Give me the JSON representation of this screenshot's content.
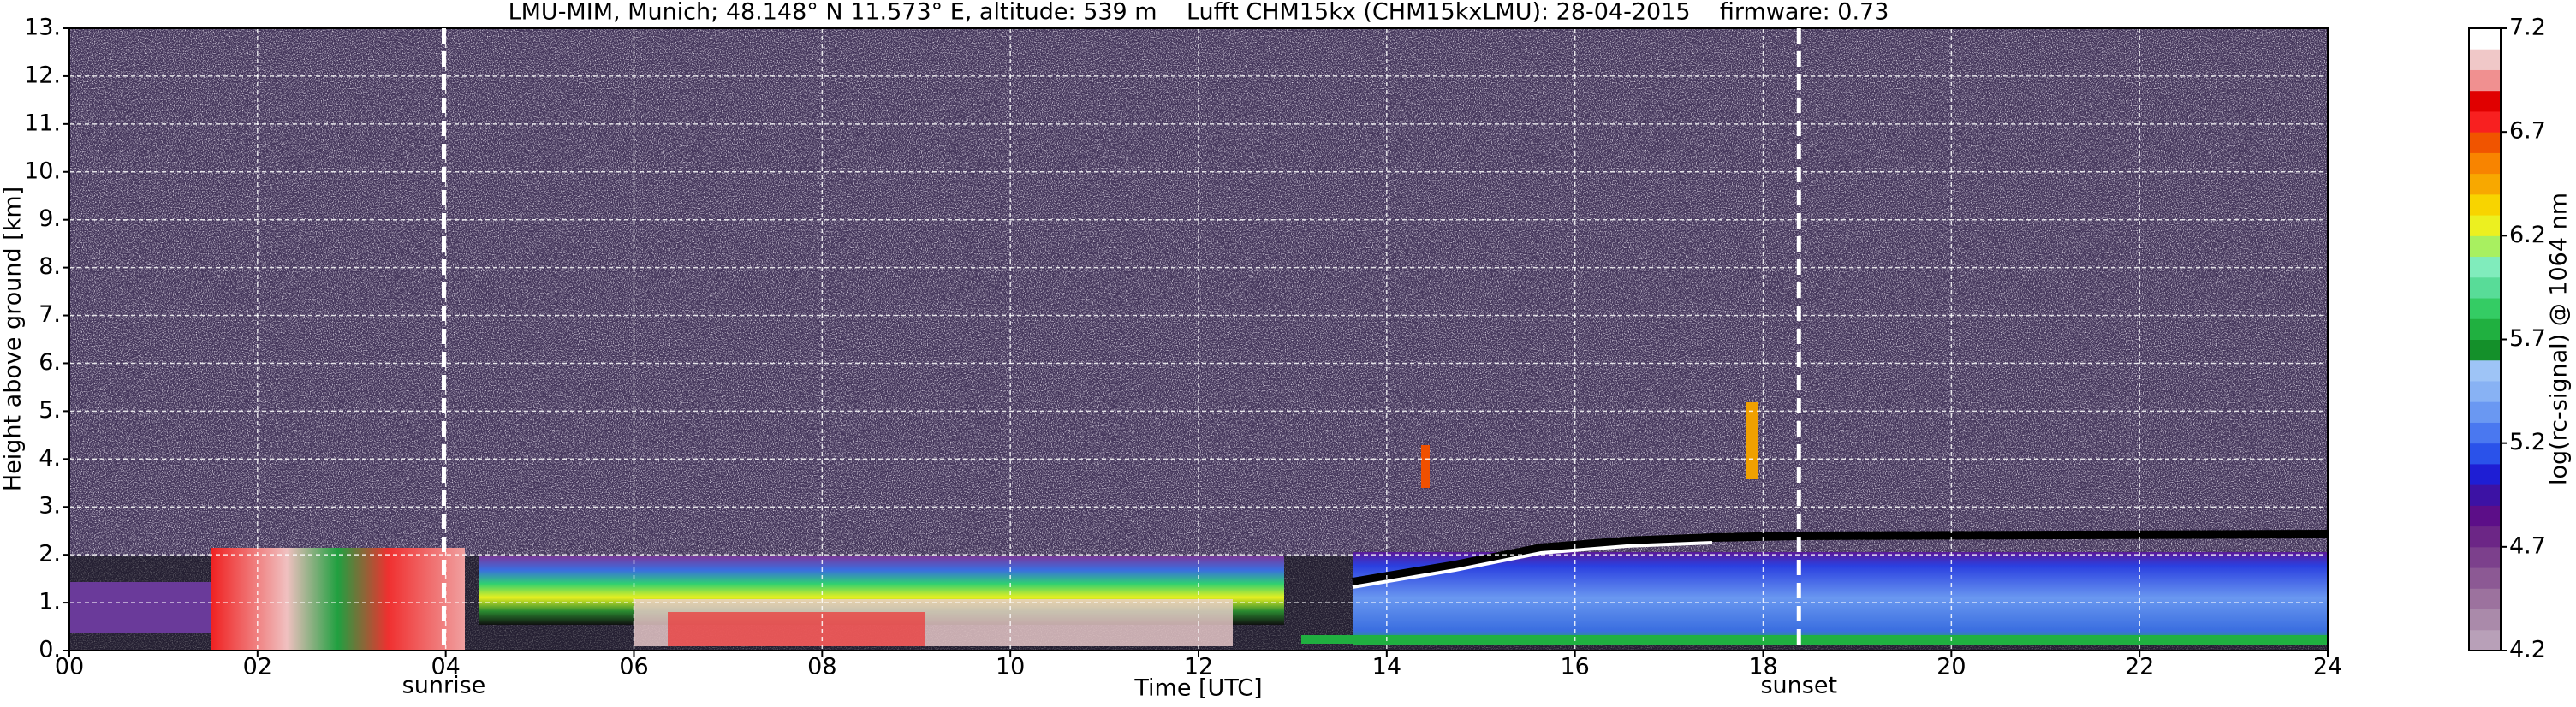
{
  "chart_data": {
    "type": "heatmap",
    "title": "LMU-MIM, Munich; 48.148° N 11.573° E, altitude: 539 m    Lufft CHM15kx (CHM15kxLMU): 28-04-2015    firmware: 0.73",
    "xlabel": "Time [UTC]",
    "ylabel": "Height above ground [km]",
    "xlim": [
      0,
      24
    ],
    "xticks": [
      {
        "value": 0,
        "label": "00"
      },
      {
        "value": 2,
        "label": "02"
      },
      {
        "value": 4,
        "label": "04"
      },
      {
        "value": 6,
        "label": "06"
      },
      {
        "value": 8,
        "label": "08"
      },
      {
        "value": 10,
        "label": "10"
      },
      {
        "value": 12,
        "label": "12"
      },
      {
        "value": 14,
        "label": "14"
      },
      {
        "value": 16,
        "label": "16"
      },
      {
        "value": 18,
        "label": "18"
      },
      {
        "value": 20,
        "label": "20"
      },
      {
        "value": 22,
        "label": "22"
      },
      {
        "value": 24,
        "label": "24"
      }
    ],
    "ylim": [
      0,
      13
    ],
    "yticks": [
      {
        "value": 0,
        "label": "0."
      },
      {
        "value": 1,
        "label": "1."
      },
      {
        "value": 2,
        "label": "2."
      },
      {
        "value": 3,
        "label": "3."
      },
      {
        "value": 4,
        "label": "4."
      },
      {
        "value": 5,
        "label": "5."
      },
      {
        "value": 6,
        "label": "6."
      },
      {
        "value": 7,
        "label": "7."
      },
      {
        "value": 8,
        "label": "8."
      },
      {
        "value": 9,
        "label": "9."
      },
      {
        "value": 10,
        "label": "10."
      },
      {
        "value": 11,
        "label": "11."
      },
      {
        "value": 12,
        "label": "12."
      },
      {
        "value": 13,
        "label": "13."
      }
    ],
    "grid": true,
    "annotations": [
      {
        "text": "sunrise",
        "x": 3.98
      },
      {
        "text": "sunset",
        "x": 18.38
      }
    ],
    "colorbar": {
      "label": "log(rc-signal) @ 1064 nm",
      "lim": [
        4.2,
        7.2
      ],
      "ticks": [
        4.2,
        4.7,
        5.2,
        5.7,
        6.2,
        6.7,
        7.2
      ],
      "colors": [
        "#b8a0b8",
        "#aa8aaa",
        "#9c729e",
        "#8c5994",
        "#7c408c",
        "#6c2686",
        "#5c0e88",
        "#3c12a4",
        "#1e1ed4",
        "#2a52ea",
        "#4a78f0",
        "#6a98f2",
        "#88b2f4",
        "#9ec4f6",
        "#14902a",
        "#20b040",
        "#34cc64",
        "#58dc98",
        "#80ecbc",
        "#a8f060",
        "#ecf020",
        "#f8d400",
        "#f8a800",
        "#f88400",
        "#f05400",
        "#f82020",
        "#e00000",
        "#f09090",
        "#f0c8c8",
        "#ffffff"
      ]
    }
  }
}
